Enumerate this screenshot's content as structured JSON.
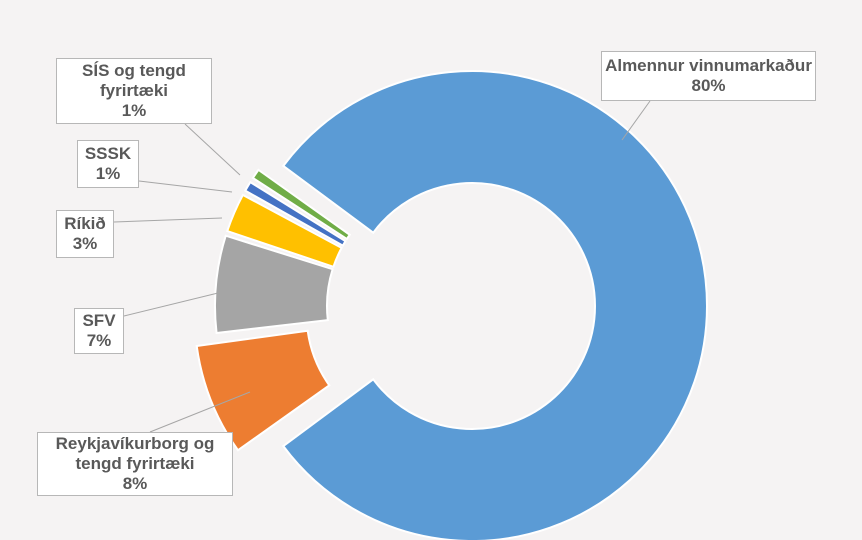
{
  "chart_data": {
    "type": "donut",
    "title": "",
    "segments": [
      {
        "name": "Almennur vinnumarkaður",
        "label": "Almennur vinnumarkaður",
        "value_label": "80%",
        "value": 80,
        "color": "#5b9bd5",
        "exploded": true
      },
      {
        "name": "Reykjavíkurborg og tengd fyrirtæki",
        "label": "Reykjavíkurborg og tengd fyrirtæki",
        "value_label": "8%",
        "value": 8,
        "color": "#ed7d31",
        "exploded": true
      },
      {
        "name": "SFV",
        "label": "SFV",
        "value_label": "7%",
        "value": 7,
        "color": "#a5a5a5",
        "exploded": false
      },
      {
        "name": "Ríkið",
        "label": "Ríkið",
        "value_label": "3%",
        "value": 3,
        "color": "#ffc000",
        "exploded": false
      },
      {
        "name": "SSSK",
        "label": "SSSK",
        "value_label": "1%",
        "value": 1,
        "color": "#4472c4",
        "exploded": false
      },
      {
        "name": "SÍS og tengd fyrirtæki",
        "label": "SÍS og tengd fyrirtæki",
        "value_label": "1%",
        "value": 1,
        "color": "#70ad47",
        "exploded": false
      }
    ]
  }
}
